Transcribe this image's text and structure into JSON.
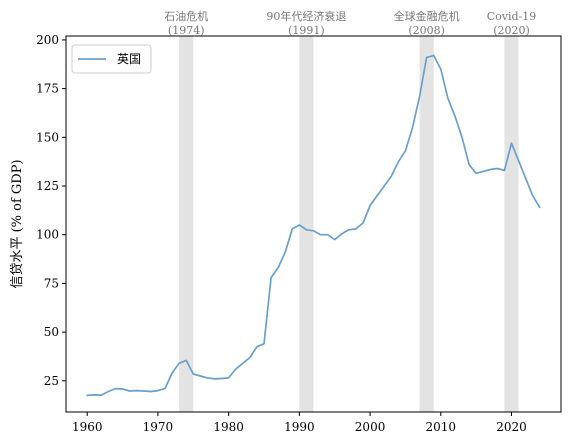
{
  "chart_data": {
    "type": "line",
    "title": "",
    "xlabel": "",
    "ylabel": "信贷水平 (% of GDP)",
    "xlim": [
      1957,
      2027
    ],
    "ylim": [
      9,
      202
    ],
    "xticks": [
      1960,
      1970,
      1980,
      1990,
      2000,
      2010,
      2020
    ],
    "yticks": [
      25,
      50,
      75,
      100,
      125,
      150,
      175,
      200
    ],
    "grid": false,
    "legend_position": "top-left",
    "colors": {
      "line": "#6b9fcb",
      "shade": "#bdbdbd",
      "annotation": "#777777"
    },
    "series": [
      {
        "name": "英国",
        "x": [
          1960,
          1961,
          1962,
          1963,
          1964,
          1965,
          1966,
          1967,
          1968,
          1969,
          1970,
          1971,
          1972,
          1973,
          1974,
          1975,
          1976,
          1977,
          1978,
          1979,
          1980,
          1981,
          1982,
          1983,
          1984,
          1985,
          1986,
          1987,
          1988,
          1989,
          1990,
          1991,
          1992,
          1993,
          1994,
          1995,
          1996,
          1997,
          1998,
          1999,
          2000,
          2001,
          2002,
          2003,
          2004,
          2005,
          2006,
          2007,
          2008,
          2009,
          2010,
          2011,
          2012,
          2013,
          2014,
          2015,
          2016,
          2017,
          2018,
          2019,
          2020,
          2021,
          2022,
          2023,
          2024
        ],
        "y": [
          17.5,
          17.8,
          17.7,
          19.5,
          21,
          20.8,
          19.8,
          20,
          19.8,
          19.5,
          20,
          21,
          29,
          34,
          35.5,
          28.5,
          27.5,
          26.5,
          26,
          26.2,
          26.5,
          31,
          34,
          37,
          42.5,
          44,
          78,
          83,
          91,
          103,
          105,
          102.5,
          102,
          100,
          100,
          97.5,
          100.5,
          102.5,
          103,
          106,
          115,
          120,
          125,
          130,
          137.5,
          143,
          155,
          171,
          191,
          192,
          185,
          170,
          161,
          150,
          136,
          131.5,
          132.5,
          133.5,
          134,
          133,
          147,
          138,
          129,
          120,
          114
        ]
      }
    ],
    "annotations": [
      {
        "label": "石油危机",
        "sublabel": "(1974)",
        "start": 1973,
        "end": 1975
      },
      {
        "label": "90年代经济衰退",
        "sublabel": "(1991)",
        "start": 1990,
        "end": 1992
      },
      {
        "label": "全球金融危机",
        "sublabel": "(2008)",
        "start": 2007,
        "end": 2009
      },
      {
        "label": "Covid-19",
        "sublabel": "(2020)",
        "start": 2019,
        "end": 2021
      }
    ]
  }
}
